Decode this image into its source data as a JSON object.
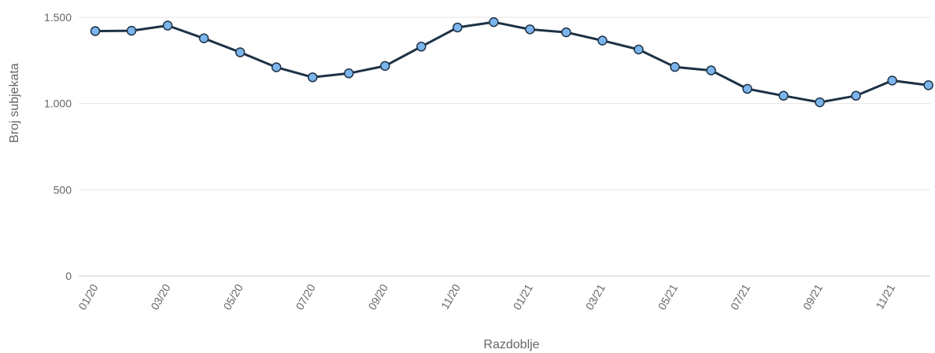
{
  "chart_data": {
    "type": "line",
    "title": "",
    "xlabel": "Razdoblje",
    "ylabel": "Broj subjekata",
    "ylim": [
      0,
      1500
    ],
    "yticks": [
      {
        "value": 0,
        "label": "0"
      },
      {
        "value": 500,
        "label": "500"
      },
      {
        "value": 1000,
        "label": "1.000"
      },
      {
        "value": 1500,
        "label": "1.500"
      }
    ],
    "categories": [
      "01/20",
      "02/20",
      "03/20",
      "04/20",
      "05/20",
      "06/20",
      "07/20",
      "08/20",
      "09/20",
      "10/20",
      "11/20",
      "12/20",
      "01/21",
      "02/21",
      "03/21",
      "04/21",
      "05/21",
      "06/21",
      "07/21",
      "08/21",
      "09/21",
      "10/21",
      "11/21",
      "12/21"
    ],
    "xtick_labels": [
      "01/20",
      "",
      "03/20",
      "",
      "05/20",
      "",
      "07/20",
      "",
      "09/20",
      "",
      "11/20",
      "",
      "01/21",
      "",
      "03/21",
      "",
      "05/21",
      "",
      "07/21",
      "",
      "09/21",
      "",
      "11/21",
      ""
    ],
    "series": [
      {
        "values": [
          1420,
          1422,
          1452,
          1378,
          1297,
          1210,
          1152,
          1175,
          1218,
          1330,
          1441,
          1472,
          1430,
          1413,
          1365,
          1313,
          1212,
          1192,
          1085,
          1045,
          1007,
          1045,
          1133,
          1106
        ]
      }
    ],
    "grid": true,
    "legend": "none",
    "colors": {
      "line": "#1e3246",
      "marker": "#7cb5ec",
      "grid": "#e6e6e6"
    }
  }
}
